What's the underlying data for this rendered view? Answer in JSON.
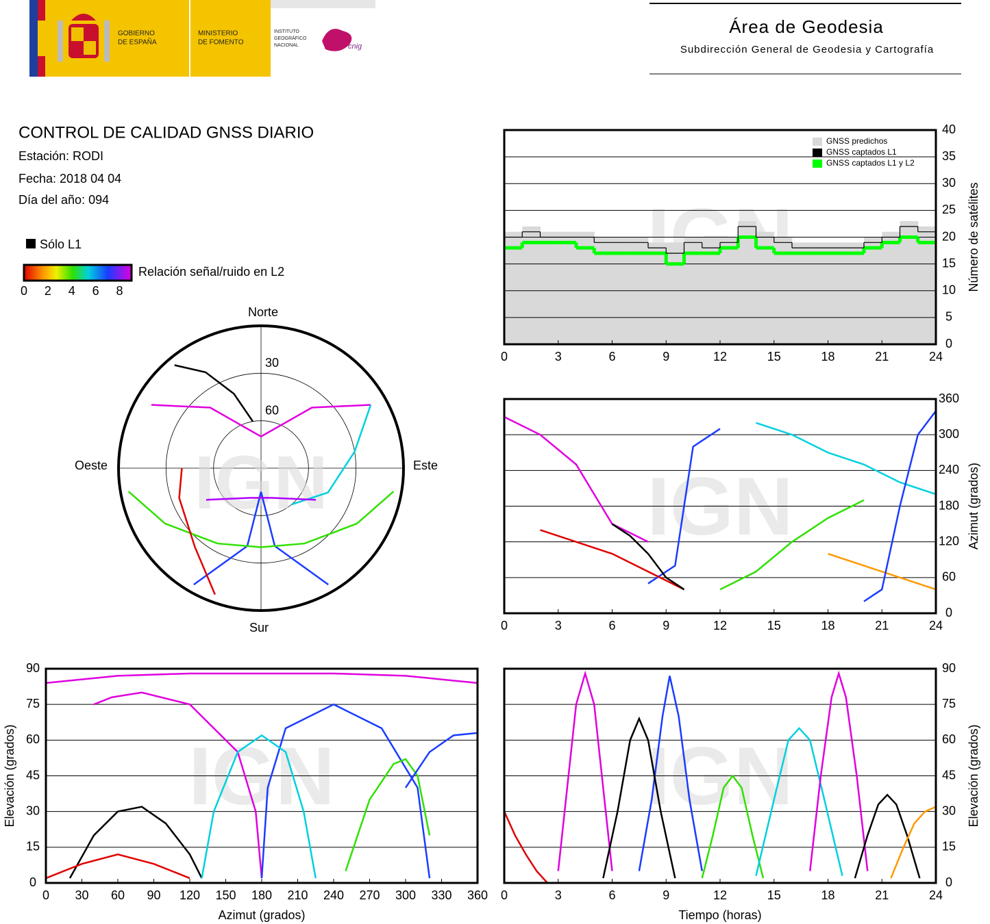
{
  "header": {
    "gobierno": [
      "GOBIERNO",
      "DE ESPAÑA"
    ],
    "ministerio": [
      "MINISTERIO",
      "DE FOMENTO"
    ],
    "ign": [
      "INSTITUTO",
      "GEOGRÁFICO",
      "NACIONAL"
    ],
    "cnig": "cnig",
    "title": "Área de Geodesia",
    "subtitle": "Subdirección General de Geodesia y Cartografía"
  },
  "report": {
    "title": "CONTROL DE CALIDAD GNSS DIARIO",
    "lines": [
      "Estación: RODI",
      "Fecha: 2018 04 04",
      "Día del año: 094"
    ],
    "legend_l1": "Sólo L1",
    "colorbar_label": "Relación señal/ruido en L2",
    "colorbar_ticks": [
      0,
      2,
      4,
      6,
      8
    ],
    "clim": [
      0,
      9
    ]
  },
  "watermark": "IGN",
  "chart_data": [
    {
      "type": "polar",
      "directions": {
        "north": "Norte",
        "south": "Sur",
        "east": "Este",
        "west": "Oeste"
      },
      "rings": [
        30,
        60
      ],
      "series": [
        {
          "color": "#e000e0",
          "azimuth": [
            300,
            320,
            0,
            40,
            60
          ],
          "values": [
            10,
            40,
            70,
            40,
            10
          ]
        },
        {
          "color": "#1a3cff",
          "azimuth": [
            150,
            170,
            180,
            190,
            210
          ],
          "values": [
            5,
            40,
            75,
            40,
            5
          ]
        },
        {
          "color": "#30e000",
          "azimuth": [
            100,
            120,
            150,
            180,
            210,
            240,
            260
          ],
          "values": [
            5,
            20,
            35,
            40,
            35,
            20,
            5
          ]
        },
        {
          "color": "#000000",
          "azimuth": [
            320,
            330,
            340,
            350
          ],
          "values": [
            5,
            20,
            40,
            60
          ]
        },
        {
          "color": "#e00000",
          "azimuth": [
            200,
            220,
            250,
            270
          ],
          "values": [
            5,
            25,
            35,
            40
          ]
        },
        {
          "color": "#00d0e0",
          "azimuth": [
            60,
            80,
            110,
            140
          ],
          "values": [
            10,
            30,
            45,
            60
          ]
        },
        {
          "color": "#b000ff",
          "azimuth": [
            120,
            160,
            200,
            240
          ],
          "values": [
            50,
            70,
            70,
            50
          ]
        }
      ]
    },
    {
      "type": "step",
      "ylabel": "Número de satélites",
      "xlim": [
        0,
        24
      ],
      "xticks": [
        0,
        3,
        6,
        9,
        12,
        15,
        18,
        21,
        24
      ],
      "ylim": [
        0,
        40
      ],
      "yticks": [
        0,
        5,
        10,
        15,
        20,
        25,
        30,
        35,
        40
      ],
      "grid": true,
      "x": [
        0,
        1,
        2,
        3,
        4,
        5,
        6,
        7,
        8,
        9,
        10,
        11,
        12,
        13,
        14,
        15,
        16,
        17,
        18,
        19,
        20,
        21,
        22,
        23,
        24
      ],
      "series": [
        {
          "name": "GNSS predichos",
          "color": "#d9d9d9",
          "values": [
            21,
            22,
            21,
            21,
            21,
            20,
            20,
            20,
            19,
            19,
            20,
            20,
            20,
            23,
            21,
            20,
            19,
            19,
            19,
            19,
            20,
            21,
            23,
            22,
            21
          ]
        },
        {
          "name": "GNSS captados L1",
          "color": "#000000",
          "values": [
            20,
            21,
            20,
            20,
            20,
            19,
            19,
            19,
            18,
            17,
            19,
            18,
            19,
            22,
            20,
            19,
            18,
            18,
            18,
            18,
            19,
            20,
            22,
            21,
            20
          ]
        },
        {
          "name": "GNSS captados L1 y L2",
          "color": "#00ff00",
          "values": [
            18,
            19,
            19,
            19,
            18,
            17,
            17,
            17,
            17,
            15,
            17,
            17,
            18,
            20,
            18,
            17,
            17,
            17,
            17,
            17,
            18,
            19,
            20,
            19,
            19
          ]
        }
      ]
    },
    {
      "type": "track",
      "ylabel": "Azimut (grados)",
      "xlim": [
        0,
        24
      ],
      "xticks": [
        0,
        3,
        6,
        9,
        12,
        15,
        18,
        21,
        24
      ],
      "ylim": [
        0,
        360
      ],
      "yticks": [
        0,
        60,
        120,
        180,
        240,
        300,
        360
      ],
      "grid": true,
      "series": [
        {
          "color": "#e000e0",
          "x": [
            0,
            2,
            4,
            5,
            6,
            8
          ],
          "values": [
            330,
            300,
            250,
            200,
            150,
            120
          ]
        },
        {
          "color": "#1a3cff",
          "x": [
            8,
            9.5,
            10,
            10.5,
            12
          ],
          "values": [
            50,
            80,
            180,
            280,
            310
          ]
        },
        {
          "color": "#30e000",
          "x": [
            12,
            14,
            16,
            18,
            20
          ],
          "values": [
            40,
            70,
            120,
            160,
            190
          ]
        },
        {
          "color": "#e00000",
          "x": [
            2,
            4,
            6,
            8,
            10
          ],
          "values": [
            140,
            120,
            100,
            70,
            40
          ]
        },
        {
          "color": "#00d0e0",
          "x": [
            14,
            16,
            18,
            20,
            22,
            24
          ],
          "values": [
            320,
            300,
            270,
            250,
            220,
            200
          ]
        },
        {
          "color": "#000000",
          "x": [
            6,
            7,
            8,
            9,
            10
          ],
          "values": [
            150,
            130,
            100,
            60,
            40
          ]
        },
        {
          "color": "#ff9900",
          "x": [
            18,
            20,
            22,
            24
          ],
          "values": [
            100,
            80,
            60,
            40
          ]
        },
        {
          "color": "#1a3cff",
          "x": [
            20,
            21,
            22,
            23,
            24
          ],
          "values": [
            20,
            40,
            180,
            300,
            340
          ]
        }
      ]
    },
    {
      "type": "track",
      "xlabel": "Azimut (grados)",
      "ylabel": "Elevación (grados)",
      "xlim": [
        0,
        360
      ],
      "xticks": [
        0,
        30,
        60,
        90,
        120,
        150,
        180,
        210,
        240,
        270,
        300,
        330,
        360
      ],
      "ylim": [
        0,
        90
      ],
      "yticks": [
        0,
        15,
        30,
        45,
        60,
        75,
        90
      ],
      "grid": true,
      "series": [
        {
          "color": "#e000e0",
          "x": [
            40,
            55,
            80,
            120,
            160,
            175,
            180
          ],
          "values": [
            75,
            78,
            80,
            75,
            55,
            30,
            2
          ]
        },
        {
          "color": "#1a3cff",
          "x": [
            180,
            185,
            200,
            240,
            280,
            310,
            320
          ],
          "values": [
            2,
            40,
            65,
            75,
            65,
            40,
            2
          ]
        },
        {
          "color": "#000000",
          "x": [
            20,
            40,
            60,
            80,
            100,
            120,
            130
          ],
          "values": [
            2,
            20,
            30,
            32,
            25,
            12,
            2
          ]
        },
        {
          "color": "#30e000",
          "x": [
            250,
            270,
            290,
            300,
            310,
            320
          ],
          "values": [
            5,
            35,
            50,
            52,
            45,
            20
          ]
        },
        {
          "color": "#e00000",
          "x": [
            0,
            30,
            60,
            90,
            120
          ],
          "values": [
            2,
            8,
            12,
            8,
            2
          ]
        },
        {
          "color": "#00d0e0",
          "x": [
            130,
            140,
            160,
            180,
            200,
            215,
            225
          ],
          "values": [
            2,
            30,
            55,
            62,
            55,
            30,
            2
          ]
        },
        {
          "color": "#e000e0",
          "x": [
            0,
            60,
            120,
            180,
            240,
            300,
            360
          ],
          "values": [
            84,
            87,
            88,
            88,
            88,
            87,
            84
          ]
        },
        {
          "color": "#1a3cff",
          "x": [
            300,
            320,
            340,
            360
          ],
          "values": [
            40,
            55,
            62,
            63
          ]
        }
      ]
    },
    {
      "type": "track",
      "xlabel": "Tiempo (horas)",
      "ylabel": "Elevación (grados)",
      "xlim": [
        0,
        24
      ],
      "xticks": [
        0,
        3,
        6,
        9,
        12,
        15,
        18,
        21,
        24
      ],
      "ylim": [
        0,
        90
      ],
      "yticks": [
        0,
        15,
        30,
        45,
        60,
        75,
        90
      ],
      "grid": true,
      "series": [
        {
          "color": "#e000e0",
          "x": [
            3,
            3.5,
            4,
            4.5,
            5,
            5.5,
            6
          ],
          "values": [
            5,
            40,
            75,
            88,
            75,
            40,
            5
          ]
        },
        {
          "color": "#1a3cff",
          "x": [
            7.5,
            8.2,
            8.8,
            9.2,
            9.7,
            10.3,
            11
          ],
          "values": [
            5,
            35,
            70,
            87,
            70,
            35,
            5
          ]
        },
        {
          "color": "#000000",
          "x": [
            5.5,
            6.3,
            7,
            7.5,
            8,
            8.7,
            9.5
          ],
          "values": [
            2,
            30,
            60,
            69,
            60,
            30,
            2
          ]
        },
        {
          "color": "#30e000",
          "x": [
            11,
            11.6,
            12.2,
            12.7,
            13.2,
            13.8,
            14.4
          ],
          "values": [
            2,
            20,
            40,
            45,
            40,
            20,
            2
          ]
        },
        {
          "color": "#e00000",
          "x": [
            0,
            0.6,
            1.2,
            1.8,
            2.4
          ],
          "values": [
            30,
            20,
            12,
            5,
            0
          ]
        },
        {
          "color": "#00d0e0",
          "x": [
            14,
            15,
            15.8,
            16.4,
            17,
            17.8,
            18.8
          ],
          "values": [
            3,
            35,
            60,
            65,
            60,
            35,
            3
          ]
        },
        {
          "color": "#e000e0",
          "x": [
            17,
            17.6,
            18.2,
            18.6,
            19,
            19.6,
            20.2
          ],
          "values": [
            5,
            45,
            78,
            88,
            78,
            45,
            5
          ]
        },
        {
          "color": "#000000",
          "x": [
            19.5,
            20.2,
            20.8,
            21.3,
            21.8,
            22.4,
            23.1
          ],
          "values": [
            2,
            20,
            33,
            37,
            33,
            20,
            2
          ]
        },
        {
          "color": "#ff9900",
          "x": [
            21.5,
            22.2,
            22.8,
            23.4,
            24
          ],
          "values": [
            2,
            15,
            25,
            30,
            32
          ]
        }
      ]
    }
  ]
}
